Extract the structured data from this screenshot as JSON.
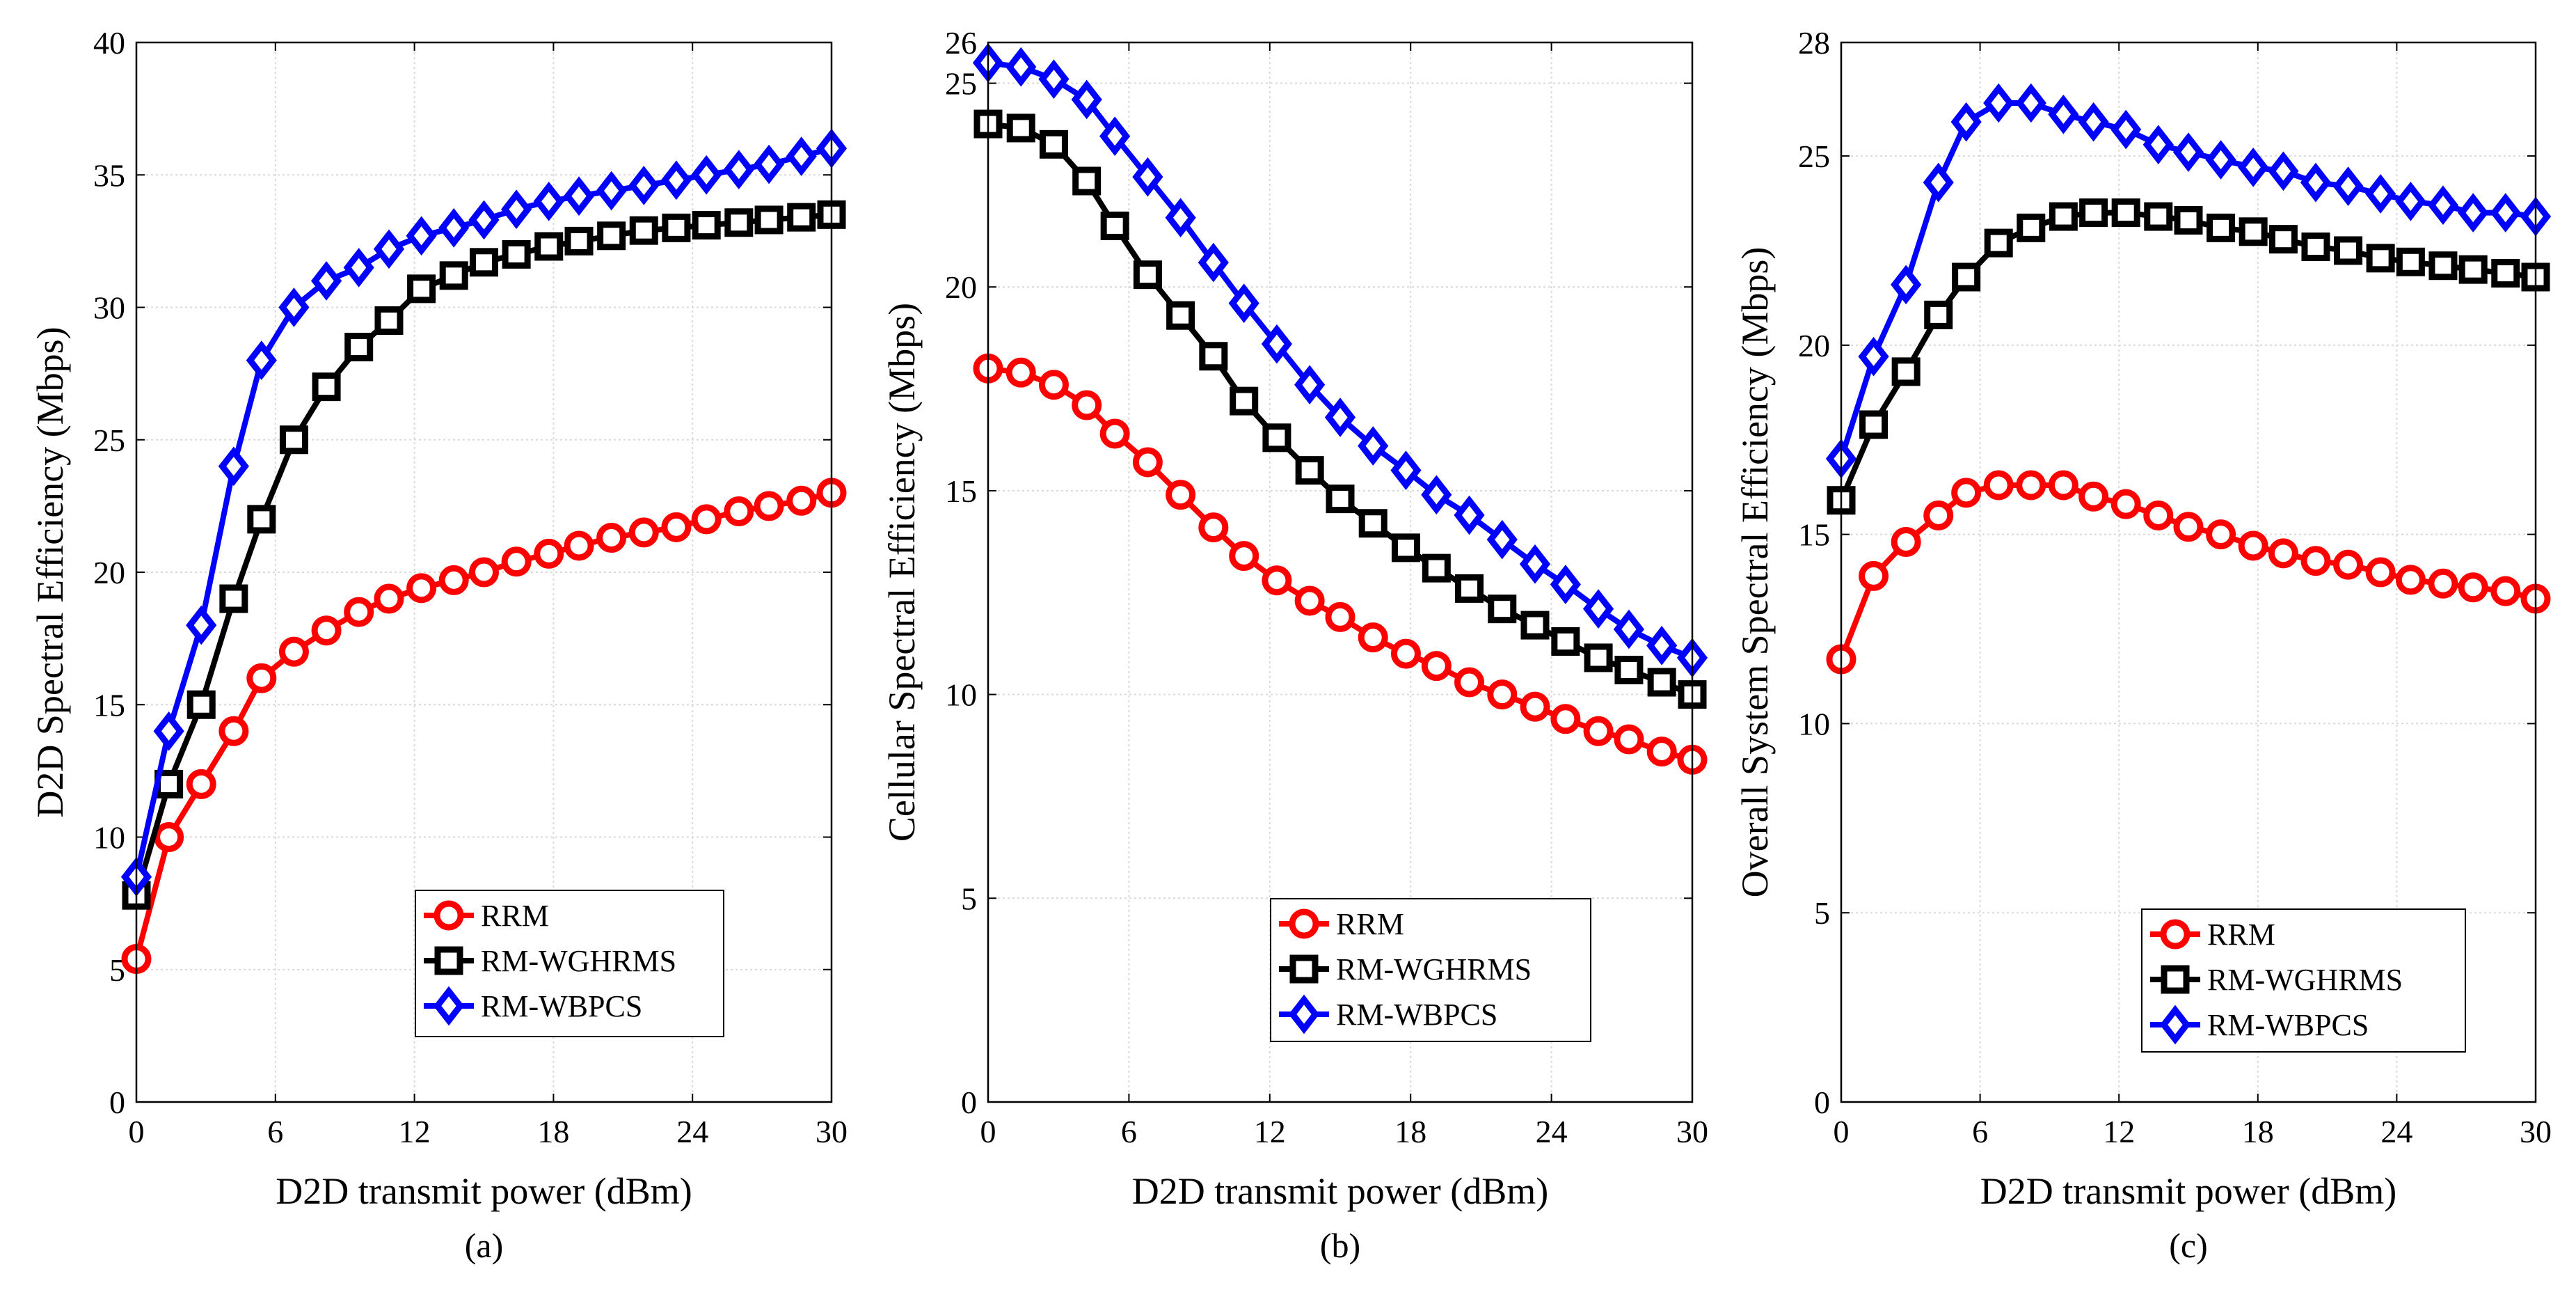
{
  "chart_data": [
    {
      "type": "line",
      "caption": "(a)",
      "xlabel": "D2D transmit power (dBm)",
      "ylabel": "D2D Spectral Efficiency (Mbps)",
      "xlim": [
        0,
        30
      ],
      "ylim": [
        0,
        40
      ],
      "xticks": [
        0,
        6,
        12,
        18,
        24,
        30
      ],
      "yticks": [
        0,
        5,
        10,
        15,
        20,
        25,
        30,
        35,
        40
      ],
      "legend_position": "bottom-right",
      "x": [
        0,
        1.4,
        2.8,
        4.2,
        5.4,
        6.8,
        8.2,
        9.6,
        10.9,
        12.3,
        13.7,
        15.0,
        16.4,
        17.8,
        19.1,
        20.5,
        21.9,
        23.3,
        24.6,
        26.0,
        27.3,
        28.7,
        30.0
      ],
      "series": [
        {
          "name": "RRM",
          "color": "#ff0000",
          "marker": "circle",
          "values": [
            5.4,
            10.0,
            12.0,
            14.0,
            16.0,
            17.0,
            17.8,
            18.5,
            19.0,
            19.4,
            19.7,
            20.0,
            20.4,
            20.7,
            21.0,
            21.3,
            21.5,
            21.7,
            22.0,
            22.3,
            22.5,
            22.7,
            23.0
          ]
        },
        {
          "name": "RM-WGHRMS",
          "color": "#000000",
          "marker": "square",
          "values": [
            7.8,
            12.0,
            15.0,
            19.0,
            22.0,
            25.0,
            27.0,
            28.5,
            29.5,
            30.7,
            31.2,
            31.7,
            32.0,
            32.3,
            32.5,
            32.7,
            32.9,
            33.0,
            33.1,
            33.2,
            33.3,
            33.4,
            33.5
          ]
        },
        {
          "name": "RM-WBPCS",
          "color": "#0000ff",
          "marker": "diamond",
          "values": [
            8.5,
            14.0,
            18.0,
            24.0,
            28.0,
            30.0,
            31.0,
            31.5,
            32.2,
            32.7,
            33.0,
            33.3,
            33.7,
            34.0,
            34.2,
            34.4,
            34.6,
            34.8,
            35.0,
            35.2,
            35.4,
            35.7,
            36.0
          ]
        }
      ]
    },
    {
      "type": "line",
      "caption": "(b)",
      "xlabel": "D2D transmit power (dBm)",
      "ylabel": "Cellular Spectral Efficiency (Mbps)",
      "xlim": [
        0,
        30
      ],
      "ylim": [
        0,
        26
      ],
      "xticks": [
        0,
        6,
        12,
        18,
        24,
        30
      ],
      "yticks": [
        0,
        5,
        10,
        15,
        20,
        25,
        26
      ],
      "legend_position": "bottom-right",
      "x": [
        0,
        1.4,
        2.8,
        4.2,
        5.4,
        6.8,
        8.2,
        9.6,
        10.9,
        12.3,
        13.7,
        15.0,
        16.4,
        17.8,
        19.1,
        20.5,
        21.9,
        23.3,
        24.6,
        26.0,
        27.3,
        28.7,
        30.0
      ],
      "series": [
        {
          "name": "RRM",
          "color": "#ff0000",
          "marker": "circle",
          "values": [
            18.0,
            17.9,
            17.6,
            17.1,
            16.4,
            15.7,
            14.9,
            14.1,
            13.4,
            12.8,
            12.3,
            11.9,
            11.4,
            11.0,
            10.7,
            10.3,
            10.0,
            9.7,
            9.4,
            9.1,
            8.9,
            8.6,
            8.4
          ]
        },
        {
          "name": "RM-WGHRMS",
          "color": "#000000",
          "marker": "square",
          "values": [
            24.0,
            23.9,
            23.5,
            22.6,
            21.5,
            20.3,
            19.3,
            18.3,
            17.2,
            16.3,
            15.5,
            14.8,
            14.2,
            13.6,
            13.1,
            12.6,
            12.1,
            11.7,
            11.3,
            10.9,
            10.6,
            10.3,
            10.0
          ]
        },
        {
          "name": "RM-WBPCS",
          "color": "#0000ff",
          "marker": "diamond",
          "values": [
            25.5,
            25.4,
            25.1,
            24.6,
            23.7,
            22.7,
            21.7,
            20.6,
            19.6,
            18.6,
            17.6,
            16.8,
            16.1,
            15.5,
            14.9,
            14.4,
            13.8,
            13.2,
            12.7,
            12.1,
            11.6,
            11.2,
            10.9
          ]
        }
      ]
    },
    {
      "type": "line",
      "caption": "(c)",
      "xlabel": "D2D transmit power (dBm)",
      "ylabel": "Overall System Spectral Efficiency (Mbps)",
      "xlim": [
        0,
        30
      ],
      "ylim": [
        0,
        28
      ],
      "xticks": [
        0,
        6,
        12,
        18,
        24,
        30
      ],
      "yticks": [
        0,
        5,
        10,
        15,
        20,
        25,
        28
      ],
      "legend_position": "bottom-right",
      "x": [
        0,
        1.4,
        2.8,
        4.2,
        5.4,
        6.8,
        8.2,
        9.6,
        10.9,
        12.3,
        13.7,
        15.0,
        16.4,
        17.8,
        19.1,
        20.5,
        21.9,
        23.3,
        24.6,
        26.0,
        27.3,
        28.7,
        30.0
      ],
      "series": [
        {
          "name": "RRM",
          "color": "#ff0000",
          "marker": "circle",
          "values": [
            11.7,
            13.9,
            14.8,
            15.5,
            16.1,
            16.3,
            16.3,
            16.3,
            16.0,
            15.8,
            15.5,
            15.2,
            15.0,
            14.7,
            14.5,
            14.3,
            14.2,
            14.0,
            13.8,
            13.7,
            13.6,
            13.5,
            13.3
          ]
        },
        {
          "name": "RM-WGHRMS",
          "color": "#000000",
          "marker": "square",
          "values": [
            15.9,
            17.9,
            19.3,
            20.8,
            21.8,
            22.7,
            23.1,
            23.4,
            23.5,
            23.5,
            23.4,
            23.3,
            23.1,
            23.0,
            22.8,
            22.6,
            22.5,
            22.3,
            22.2,
            22.1,
            22.0,
            21.9,
            21.8
          ]
        },
        {
          "name": "RM-WBPCS",
          "color": "#0000ff",
          "marker": "diamond",
          "values": [
            17.0,
            19.7,
            21.6,
            24.3,
            25.9,
            26.4,
            26.4,
            26.1,
            25.9,
            25.7,
            25.3,
            25.1,
            24.9,
            24.7,
            24.6,
            24.3,
            24.2,
            24.0,
            23.8,
            23.7,
            23.5,
            23.5,
            23.4
          ]
        }
      ]
    }
  ]
}
